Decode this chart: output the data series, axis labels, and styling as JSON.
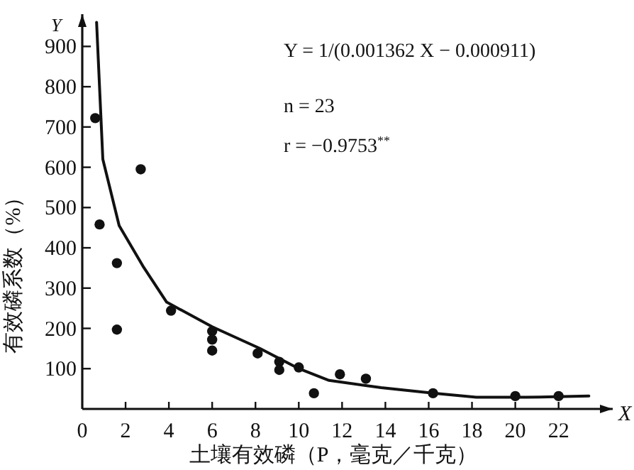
{
  "chart_data": {
    "type": "scatter",
    "xlabel": "土壤有效磷（P，毫克／千克）",
    "ylabel": "有效磷系数（%）",
    "annotations": [
      "Y",
      "X",
      "Y = 1/(0.001362 X − 0.000911)",
      "n = 23",
      "r = −0.9753$^{**}$"
    ],
    "xlim": [
      0,
      24.5
    ],
    "ylim": [
      0,
      980
    ],
    "xticks": [
      0,
      2,
      4,
      6,
      8,
      10,
      12,
      14,
      16,
      18,
      20,
      22
    ],
    "yticks": [
      100,
      200,
      300,
      400,
      500,
      600,
      700,
      800,
      900
    ],
    "grid": false,
    "series": [
      {
        "type": "scatter",
        "color": "#111111",
        "marker": "circle",
        "x": [
          0.6,
          0.8,
          1.6,
          1.6,
          2.7,
          4.1,
          6,
          6,
          6,
          8.1,
          9.1,
          9.1,
          10,
          10.7,
          11.9,
          13.1,
          16.2,
          20,
          22
        ],
        "values": [
          722,
          458,
          362,
          197,
          595,
          244,
          193,
          172,
          145,
          138,
          117,
          97,
          103,
          39,
          86,
          75,
          39,
          32,
          32
        ]
      },
      {
        "type": "line",
        "color": "#111111",
        "marker": "none",
        "line_style": "solid",
        "x": [
          0.66,
          0.95,
          1.7,
          2.8,
          3.9,
          6,
          8.2,
          10,
          11.4,
          13.8,
          16.2,
          18.2,
          20.5,
          23.4
        ],
        "values": [
          960,
          620,
          455,
          355,
          265,
          204,
          150,
          100,
          71,
          53,
          39,
          29,
          29,
          32
        ]
      }
    ]
  }
}
